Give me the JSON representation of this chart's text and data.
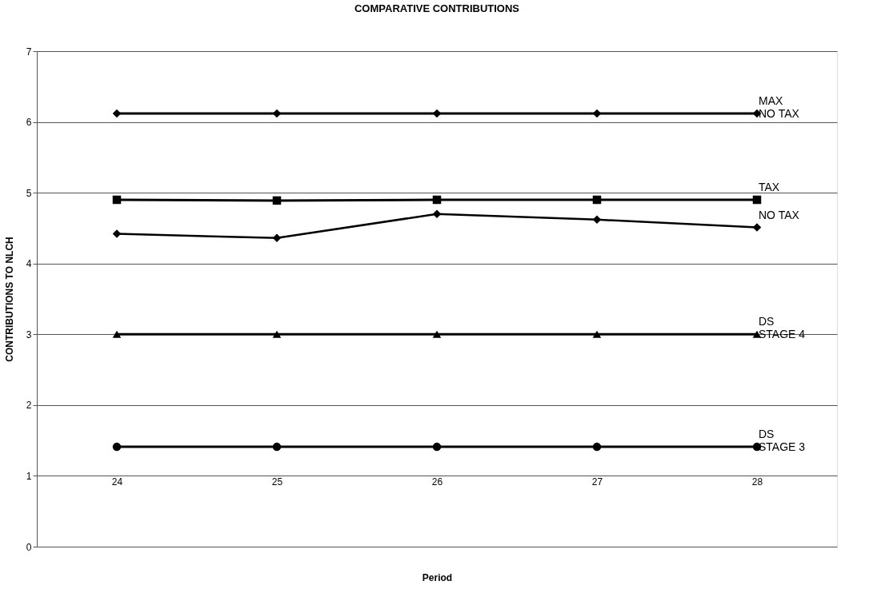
{
  "chart_data": {
    "type": "line",
    "title": "COMPARATIVE CONTRIBUTIONS",
    "xlabel": "Period",
    "ylabel": "CONTRIBUTIONS TO NLCH",
    "categories": [
      "24",
      "25",
      "26",
      "27",
      "28"
    ],
    "series": [
      {
        "name": "MAX\nNO TAX",
        "color": "#000000",
        "marker": "diamond",
        "values": [
          6.12,
          6.12,
          6.12,
          6.12,
          6.12
        ]
      },
      {
        "name": "TAX",
        "color": "#000000",
        "marker": "square",
        "values": [
          4.9,
          4.89,
          4.9,
          4.9,
          4.9
        ]
      },
      {
        "name": "NO TAX",
        "color": "#000000",
        "marker": "diamond",
        "values": [
          4.42,
          4.36,
          4.7,
          4.62,
          4.51
        ]
      },
      {
        "name": "DS\nSTAGE 4",
        "color": "#000000",
        "marker": "triangle",
        "values": [
          3.0,
          3.0,
          3.0,
          3.0,
          3.0
        ]
      },
      {
        "name": "DS\nSTAGE 3",
        "color": "#000000",
        "marker": "circle",
        "values": [
          1.41,
          1.41,
          1.41,
          1.41,
          1.41
        ]
      }
    ],
    "ylim": [
      0,
      7
    ],
    "yticks": [
      0,
      1,
      2,
      3,
      4,
      5,
      6,
      7
    ],
    "grid": "y",
    "legend": false,
    "line_style": "solid"
  }
}
